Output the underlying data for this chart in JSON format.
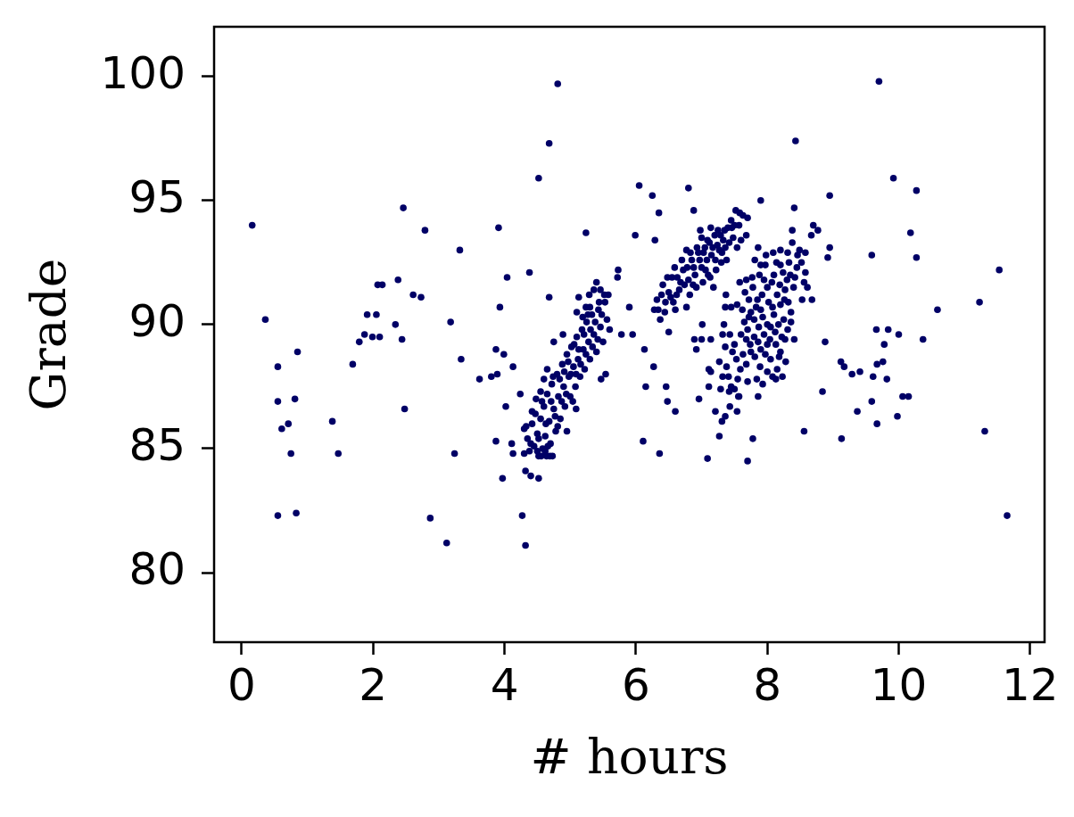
{
  "chart_data": {
    "type": "scatter",
    "xlabel": "# hours",
    "ylabel": "Grade",
    "color": "#000066",
    "marker": "circle",
    "xlim": [
      -0.42,
      12.22
    ],
    "ylim": [
      77.2,
      102.0
    ],
    "xticks": [
      0,
      2,
      4,
      6,
      8,
      10,
      12
    ],
    "yticks": [
      80,
      85,
      90,
      95,
      100
    ],
    "x": [
      0.16,
      0.36,
      0.55,
      0.85,
      0.55,
      0.81,
      0.71,
      0.61,
      0.75,
      0.55,
      0.83,
      1.38,
      1.47,
      1.69,
      1.79,
      1.87,
      1.91,
      2.05,
      1.99,
      2.1,
      2.07,
      2.14,
      2.34,
      2.38,
      2.44,
      2.46,
      2.48,
      2.61,
      2.73,
      2.79,
      2.87,
      3.12,
      3.18,
      3.24,
      3.32,
      3.34,
      3.62,
      3.8,
      3.89,
      3.87,
      3.99,
      3.91,
      3.93,
      4.04,
      4.02,
      3.87,
      3.97,
      4.38,
      4.68,
      4.52,
      4.68,
      4.81,
      4.13,
      4.24,
      4.11,
      4.13,
      4.3,
      4.32,
      4.4,
      4.52,
      4.27,
      4.32,
      4.52,
      4.64,
      4.73,
      4.75,
      5.24,
      5.73,
      5.72,
      5.9,
      5.78,
      5.95,
      5.99,
      6.05,
      6.25,
      6.35,
      6.29,
      6.8,
      6.88,
      7.9,
      6.13,
      6.27,
      6.15,
      6.46,
      6.48,
      6.6,
      6.11,
      6.36,
      7.09,
      7.7,
      7.78,
      7.27,
      7.86,
      6.96,
      7.21,
      7.36,
      7.31,
      7.54,
      7.43,
      7.11,
      7.29,
      7.56,
      7.01,
      9.7,
      8.43,
      9.92,
      10.27,
      8.95,
      8.41,
      8.7,
      8.77,
      8.67,
      10.18,
      8.95,
      8.92,
      9.59,
      10.27,
      11.53,
      11.23,
      10.59,
      9.66,
      9.84,
      10.0,
      9.78,
      10.37,
      8.88,
      9.12,
      9.17,
      9.29,
      9.41,
      9.67,
      9.76,
      9.61,
      9.82,
      8.84,
      10.06,
      10.15,
      9.59,
      9.37,
      9.98,
      9.67,
      8.56,
      9.13,
      11.31,
      11.65,
      8.53,
      8.68,
      4.45,
      4.5,
      4.55,
      4.58,
      4.6,
      4.62,
      4.65,
      4.68,
      4.7,
      4.72,
      4.75,
      4.78,
      4.8,
      4.82,
      4.85,
      4.88,
      4.9,
      4.92,
      4.95,
      4.98,
      5.0,
      5.02,
      5.05,
      5.08,
      5.1,
      5.12,
      5.15,
      5.18,
      5.2,
      5.22,
      5.25,
      5.28,
      5.3,
      5.33,
      5.36,
      5.4,
      5.43,
      5.46,
      5.5,
      5.53,
      5.56,
      5.6,
      5.58,
      5.36,
      5.46,
      5.4,
      5.13,
      5.3,
      5.1,
      5.44,
      5.19,
      4.89,
      4.95,
      5.09,
      5.47,
      5.54,
      4.5,
      4.65,
      4.55,
      4.42,
      4.35,
      4.38,
      4.3,
      4.42,
      4.48,
      4.6,
      4.33,
      4.4,
      4.47,
      4.52,
      4.57,
      4.63,
      4.66,
      4.71,
      4.74,
      4.77,
      4.81,
      4.84,
      4.87,
      4.91,
      4.94,
      4.97,
      5.01,
      5.04,
      5.06,
      5.09,
      5.13,
      5.16,
      5.21,
      5.24,
      5.27,
      5.31,
      5.34,
      5.38,
      5.42,
      5.48,
      5.52,
      5.29,
      5.24,
      4.56,
      4.62,
      4.69,
      6.28,
      6.32,
      6.37,
      6.41,
      6.45,
      6.5,
      6.5,
      6.55,
      6.59,
      6.6,
      6.62,
      6.68,
      6.72,
      6.77,
      6.77,
      6.8,
      6.82,
      6.85,
      6.9,
      6.92,
      6.95,
      7.0,
      7.0,
      7.02,
      7.05,
      7.08,
      7.1,
      7.12,
      7.15,
      7.18,
      7.2,
      7.22,
      7.25,
      7.27,
      7.3,
      7.33,
      7.36,
      7.38,
      7.4,
      7.45,
      7.48,
      7.52,
      7.54,
      7.57,
      7.6,
      7.63,
      7.68,
      7.7,
      6.89,
      7.0,
      7.14,
      6.92,
      6.34,
      6.39,
      6.44,
      6.48,
      6.53,
      6.57,
      6.63,
      6.66,
      6.7,
      6.74,
      6.78,
      6.83,
      6.87,
      6.88,
      6.93,
      6.97,
      7.03,
      7.06,
      7.09,
      7.13,
      7.17,
      7.21,
      7.24,
      7.29,
      7.31,
      7.35,
      7.42,
      7.46,
      7.5,
      7.58,
      6.98,
      7.14,
      7.86,
      8.09,
      8.2,
      7.81,
      7.9,
      7.97,
      7.77,
      7.68,
      7.58,
      7.37,
      7.36,
      7.45,
      7.54,
      7.72,
      7.34,
      7.32,
      7.43,
      8.38,
      8.38,
      8.31,
      8.49,
      8.58,
      8.33,
      8.45,
      8.58,
      8.56,
      8.61,
      8.4,
      8.27,
      8.36,
      8.36,
      8.31,
      8.27,
      8.41,
      8.13,
      8.2,
      8.18,
      8.15,
      8.13,
      8.23,
      7.36,
      7.5,
      7.68,
      7.86,
      8.0,
      7.27,
      7.38,
      7.32,
      7.41,
      7.11,
      7.14,
      7.7,
      7.84,
      7.59,
      7.68,
      7.81,
      8.0,
      7.45,
      7.5,
      7.57,
      7.7,
      7.8,
      7.9,
      8.0,
      8.1,
      8.2,
      7.95,
      8.05,
      8.15,
      8.25,
      7.85,
      7.75,
      8.0,
      8.1,
      7.9,
      8.05,
      7.65,
      7.6,
      8.3,
      8.2,
      7.95,
      7.8,
      7.62,
      7.66,
      7.72,
      7.74,
      7.78,
      7.83,
      7.87,
      7.88,
      7.92,
      7.93,
      7.98,
      8.02,
      8.04,
      8.07,
      8.08,
      8.12,
      8.14,
      8.17,
      8.19,
      8.22,
      8.24,
      8.26,
      8.28,
      8.32,
      8.35,
      8.42,
      8.46,
      8.52,
      7.97,
      7.89,
      7.75,
      7.63,
      7.53,
      7.47,
      7.42,
      7.55,
      8.08,
      7.93
    ],
    "values": [
      94.0,
      90.2,
      88.3,
      88.9,
      86.9,
      87.0,
      86.0,
      85.8,
      84.8,
      82.3,
      82.4,
      86.1,
      84.8,
      88.4,
      89.3,
      89.6,
      90.4,
      90.4,
      89.5,
      89.5,
      91.6,
      91.6,
      90.0,
      91.8,
      89.4,
      94.7,
      86.6,
      91.2,
      91.1,
      93.8,
      82.2,
      81.2,
      90.1,
      84.8,
      93.0,
      88.6,
      87.8,
      87.9,
      88.0,
      89.0,
      88.8,
      93.9,
      90.7,
      91.9,
      86.7,
      85.3,
      83.8,
      92.1,
      91.1,
      95.9,
      97.3,
      99.7,
      88.3,
      87.2,
      85.2,
      84.8,
      84.8,
      84.1,
      83.9,
      83.8,
      82.3,
      81.1,
      84.7,
      84.7,
      84.7,
      89.3,
      93.7,
      92.2,
      91.9,
      90.7,
      89.6,
      89.6,
      93.6,
      95.6,
      95.2,
      94.5,
      93.4,
      95.5,
      94.6,
      95.0,
      89.0,
      88.3,
      87.5,
      87.5,
      86.9,
      86.5,
      85.3,
      84.8,
      84.6,
      84.5,
      85.4,
      85.5,
      87.1,
      87.0,
      86.5,
      86.3,
      86.1,
      86.5,
      86.7,
      87.5,
      87.4,
      87.1,
      90.0,
      99.8,
      97.4,
      95.9,
      95.4,
      95.2,
      94.7,
      94.0,
      93.8,
      93.6,
      93.7,
      93.1,
      92.7,
      92.8,
      92.7,
      92.2,
      90.9,
      90.6,
      89.8,
      89.8,
      89.6,
      89.2,
      89.4,
      89.3,
      88.5,
      88.3,
      88.0,
      88.1,
      88.4,
      88.5,
      87.9,
      87.8,
      87.3,
      87.1,
      87.1,
      86.9,
      86.5,
      86.3,
      86.0,
      85.7,
      85.4,
      85.7,
      82.3,
      91.0,
      91.0,
      85.1,
      85.6,
      86.2,
      85.0,
      86.7,
      85.5,
      87.2,
      86.1,
      85.2,
      87.6,
      86.6,
      85.7,
      88.0,
      87.1,
      86.2,
      88.4,
      87.5,
      86.7,
      88.8,
      87.9,
      87.1,
      89.1,
      88.3,
      87.5,
      89.5,
      88.6,
      87.9,
      89.8,
      89.0,
      88.2,
      90.1,
      89.3,
      88.6,
      90.4,
      89.6,
      88.9,
      90.6,
      89.9,
      89.3,
      90.9,
      90.2,
      89.8,
      91.2,
      91.4,
      91.4,
      91.7,
      91.1,
      90.7,
      90.5,
      90.9,
      90.3,
      89.6,
      85.7,
      86.6,
      87.8,
      88.0,
      84.9,
      88.2,
      87.3,
      86.0,
      85.4,
      84.9,
      85.8,
      86.5,
      87.0,
      87.8,
      85.9,
      85.2,
      86.4,
      85.4,
      86.9,
      86.0,
      85.1,
      86.9,
      87.9,
      86.3,
      85.9,
      87.8,
      86.9,
      88.1,
      87.2,
      88.5,
      88.0,
      86.9,
      89.2,
      88.0,
      89.0,
      88.4,
      89.6,
      88.8,
      90.4,
      89.8,
      89.1,
      90.1,
      89.4,
      90.4,
      91.2,
      91.2,
      90.7,
      84.7,
      84.9,
      84.7,
      90.6,
      91.0,
      90.2,
      91.6,
      90.9,
      89.7,
      91.3,
      91.9,
      92.3,
      90.6,
      91.2,
      91.7,
      92.2,
      93.0,
      90.7,
      91.8,
      91.2,
      92.6,
      92.0,
      91.5,
      92.9,
      93.5,
      92.3,
      91.7,
      93.1,
      92.6,
      92.0,
      93.3,
      92.8,
      91.5,
      93.6,
      92.2,
      93.8,
      93.0,
      92.5,
      93.4,
      93.1,
      92.6,
      93.9,
      94.2,
      93.5,
      94.6,
      93.1,
      94.0,
      93.4,
      94.4,
      93.6,
      94.3,
      89.4,
      89.4,
      89.4,
      89.0,
      90.6,
      91.2,
      90.5,
      91.9,
      91.1,
      90.9,
      91.9,
      91.4,
      92.6,
      91.6,
      92.3,
      92.9,
      91.6,
      92.3,
      93.1,
      92.6,
      92.9,
      92.2,
      93.4,
      91.9,
      93.1,
      92.6,
      93.2,
      93.6,
      92.9,
      93.8,
      93.3,
      93.9,
      94.0,
      94.5,
      93.8,
      93.9,
      93.1,
      92.9,
      93.0,
      92.6,
      92.4,
      92.4,
      91.9,
      91.8,
      91.7,
      91.2,
      90.7,
      90.7,
      90.8,
      91.0,
      90.0,
      89.6,
      89.6,
      93.8,
      93.3,
      92.9,
      93.0,
      92.9,
      92.5,
      92.3,
      92.1,
      91.7,
      91.5,
      91.5,
      91.4,
      90.5,
      90.1,
      89.8,
      89.4,
      89.4,
      89.2,
      88.9,
      88.7,
      88.2,
      87.8,
      87.9,
      89.1,
      89.2,
      89.4,
      89.3,
      89.2,
      88.5,
      88.3,
      87.9,
      87.9,
      88.2,
      88.1,
      87.7,
      87.8,
      88.2,
      88.4,
      88.7,
      88.1,
      87.5,
      87.4,
      87.1,
      89.8,
      90.2,
      90.6,
      90.0,
      90.4,
      90.8,
      89.6,
      89.9,
      91.2,
      90.2,
      91.0,
      90.5,
      91.5,
      92.0,
      89.0,
      88.6,
      90.1,
      89.6,
      91.8,
      92.4,
      91.8,
      89.5,
      90.6,
      91.3,
      90.3,
      89.2,
      91.5,
      90.7,
      89.9,
      92.0,
      91.2,
      90.3,
      92.8,
      90.9,
      89.4,
      91.7,
      90.7,
      89.7,
      92.5,
      90.0,
      91.6,
      89.5,
      92.1,
      91.0,
      88.5,
      90.9,
      92.0,
      91.9,
      92.8,
      92.5,
      88.8,
      88.3,
      88.9,
      88.8,
      88.6,
      88.9,
      87.3,
      87.8,
      87.9,
      87.6
    ]
  }
}
